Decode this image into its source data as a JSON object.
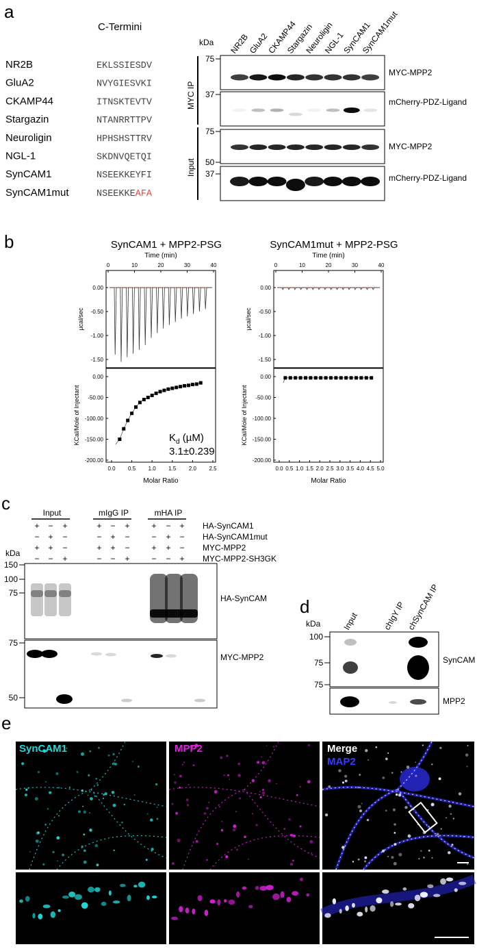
{
  "panel_a": {
    "letter": "a",
    "c_termini_header": "C-Termini",
    "kda_label": "kDa",
    "proteins": [
      {
        "name": "NR2B",
        "seq": "EKLSSIESDV",
        "mut": ""
      },
      {
        "name": "GluA2",
        "seq": "NVYGIESVKI",
        "mut": ""
      },
      {
        "name": "CKAMP44",
        "seq": "ITNSKTEVTV",
        "mut": ""
      },
      {
        "name": "Stargazin",
        "seq": "NTANRRTTPV",
        "mut": ""
      },
      {
        "name": "Neuroligin",
        "seq": "HPHSHSTTRV",
        "mut": ""
      },
      {
        "name": "NGL-1",
        "seq": "SKDNVQETQI",
        "mut": ""
      },
      {
        "name": "SynCAM1",
        "seq": "NSEEKKEYFI",
        "mut": ""
      },
      {
        "name": "SynCAM1mut",
        "seq": "NSEEKKE",
        "mut": "AFA"
      }
    ],
    "lanes": [
      "NR2B",
      "GluA2",
      "CKAMP44",
      "Stargazin",
      "Neuroligin",
      "NGL-1",
      "SynCAM1",
      "SynCAM1mut"
    ],
    "group_ip": "MYC IP",
    "group_input": "Input",
    "marker_75a": "75",
    "marker_37a": "37",
    "marker_75b": "75",
    "marker_50b": "50",
    "marker_37b": "37",
    "blot_labels": [
      "MYC-MPP2",
      "mCherry-PDZ-Ligand",
      "MYC-MPP2",
      "mCherry-PDZ-Ligand"
    ]
  },
  "panel_b": {
    "letter": "b",
    "left_title": "SynCAM1 + MPP2-PSG",
    "right_title": "SynCAM1mut + MPP2-PSG",
    "time_label": "Time (min)",
    "time_ticks": [
      "0",
      "10",
      "20",
      "30",
      "40"
    ],
    "ucal_label": "µcal/sec",
    "ucal_ticks": [
      "0.00",
      "-0.50",
      "-1.00",
      "-1.50"
    ],
    "kcal_label": "KCal/Mole of Injectant",
    "kcal_ticks": [
      "0.00",
      "-50.00",
      "-100.00",
      "-150.00",
      "-200.00"
    ],
    "molar_label": "Molar Ratio",
    "molar_ticks_left": [
      "0.0",
      "0.5",
      "1.0",
      "1.5",
      "2.0",
      "2.5"
    ],
    "molar_ticks_right": [
      "0.0",
      "0.5",
      "1.0",
      "1.5",
      "2.0",
      "2.5",
      "3.0",
      "3.5",
      "4.0",
      "4.5",
      "5.0"
    ],
    "kd_label": "K",
    "kd_sub": "d",
    "kd_unit": " (µM)",
    "kd_value": "3.1±0.239"
  },
  "chart_data": [
    {
      "type": "scatter",
      "title": "SynCAM1 + MPP2-PSG",
      "xlabel": "Molar Ratio",
      "ylabel": "KCal/Mole of Injectant",
      "xlim": [
        0,
        2.5
      ],
      "ylim": [
        -200,
        0
      ],
      "x": [
        0.2,
        0.3,
        0.4,
        0.5,
        0.6,
        0.7,
        0.8,
        0.9,
        1.0,
        1.1,
        1.2,
        1.3,
        1.4,
        1.5,
        1.6,
        1.7,
        1.8,
        1.9,
        2.0,
        2.1,
        2.2
      ],
      "y": [
        -150,
        -125,
        -105,
        -88,
        -73,
        -62,
        -55,
        -50,
        -45,
        -40,
        -36,
        -33,
        -30,
        -28,
        -26,
        -24,
        -22,
        -21,
        -19,
        -18,
        -15
      ]
    },
    {
      "type": "scatter",
      "title": "SynCAM1mut + MPP2-PSG",
      "xlabel": "Molar Ratio",
      "ylabel": "KCal/Mole of Injectant",
      "xlim": [
        0,
        5
      ],
      "ylim": [
        -200,
        0
      ],
      "x": [
        0.3,
        0.55,
        0.8,
        1.05,
        1.3,
        1.55,
        1.8,
        2.05,
        2.3,
        2.55,
        2.8,
        3.05,
        3.3,
        3.55,
        3.8,
        4.05,
        4.3,
        4.55
      ],
      "y": [
        -3,
        -3,
        -3,
        -3,
        -3,
        -3,
        -3,
        -3,
        -3,
        -3,
        -3,
        -3,
        -3,
        -3,
        -3,
        -3,
        -3,
        -3
      ]
    }
  ],
  "panel_c": {
    "letter": "c",
    "groups": [
      "Input",
      "mIgG IP",
      "mHA IP"
    ],
    "row_labels": [
      "HA-SynCAM1",
      "HA-SynCAM1mut",
      "MYC-MPP2",
      "MYC-MPP2-SH3GK"
    ],
    "signs": [
      [
        "+",
        "−",
        "+",
        "+",
        "−",
        "+",
        "+",
        "−",
        "+"
      ],
      [
        "−",
        "+",
        "−",
        "−",
        "+",
        "−",
        "−",
        "+",
        "−"
      ],
      [
        "+",
        "+",
        "−",
        "+",
        "+",
        "−",
        "+",
        "+",
        "−"
      ],
      [
        "−",
        "−",
        "+",
        "−",
        "−",
        "+",
        "−",
        "−",
        "+"
      ]
    ],
    "kda_label": "kDa",
    "markers_top": [
      "150",
      "100",
      "75"
    ],
    "markers_bottom": [
      "75",
      "50"
    ],
    "blot_labels": [
      "HA-SynCAM",
      "MYC-MPP2"
    ]
  },
  "panel_d": {
    "letter": "d",
    "kda_label": "kDa",
    "lanes": [
      "Input",
      "chIgY IP",
      "chSynCAM IP"
    ],
    "markers_top": [
      "100",
      "75"
    ],
    "markers_bottom": [
      "75"
    ],
    "blot_labels": [
      "SynCAM",
      "MPP2"
    ]
  },
  "panel_e": {
    "letter": "e",
    "ch1": "SynCAM1",
    "ch2": "MPP2",
    "ch3a": "Merge",
    "ch3b": "MAP2",
    "colors": {
      "cyan": "#22d8d8",
      "magenta": "#e020e0",
      "blue": "#2a2ae0",
      "red_mut": "#e8463c"
    }
  }
}
